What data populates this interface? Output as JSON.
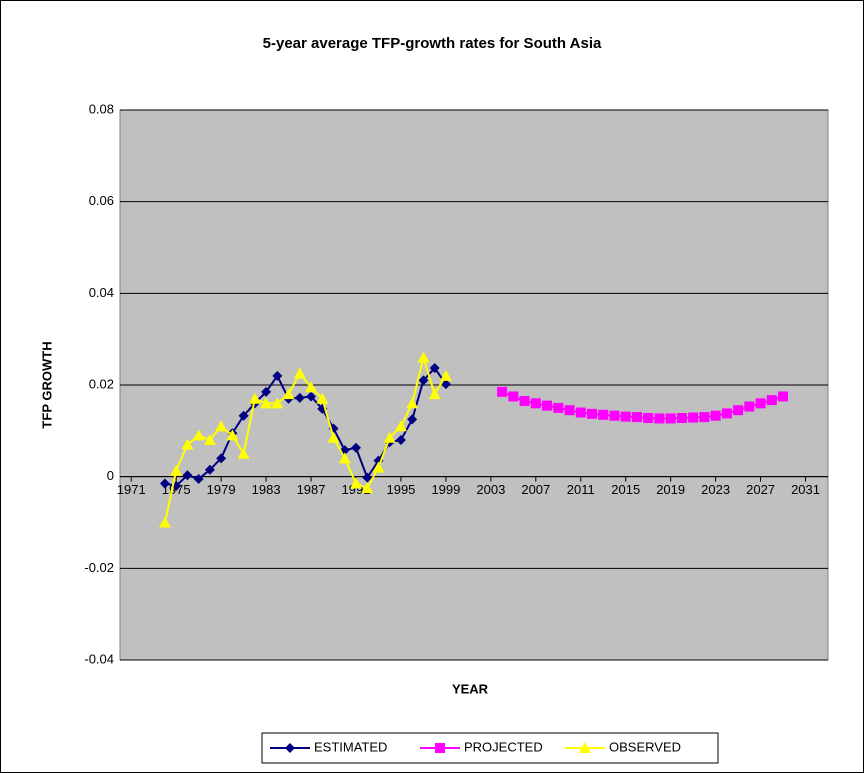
{
  "chart_data": {
    "type": "line",
    "title": "5-year average TFP-growth rates for South Asia",
    "xlabel": "YEAR",
    "ylabel": "TFP GROWTH",
    "x": [
      1974,
      1975,
      1976,
      1977,
      1978,
      1979,
      1980,
      1981,
      1982,
      1983,
      1984,
      1985,
      1986,
      1987,
      1988,
      1989,
      1990,
      1991,
      1992,
      1993,
      1994,
      1995,
      1996,
      1997,
      1998,
      1999,
      2000,
      2001,
      2002,
      2003,
      2004,
      2005,
      2006,
      2007,
      2008,
      2009,
      2010,
      2011,
      2012,
      2013,
      2014,
      2015,
      2016,
      2017,
      2018,
      2019,
      2020,
      2021,
      2022,
      2023,
      2024,
      2025,
      2026,
      2027,
      2028,
      2029
    ],
    "series": [
      {
        "name": "ESTIMATED",
        "color": "#000080",
        "marker": "diamond",
        "values": [
          -0.0015,
          -0.002,
          0.0003,
          -0.0005,
          0.0015,
          0.004,
          0.0095,
          0.0133,
          0.016,
          0.0185,
          0.022,
          0.017,
          0.0172,
          0.0175,
          0.0148,
          0.0105,
          0.0058,
          0.0063,
          -0.0002,
          0.0035,
          0.0075,
          0.008,
          0.0125,
          0.021,
          0.0237,
          0.0202,
          null,
          null,
          null,
          null,
          null,
          null,
          null,
          null,
          null,
          null,
          null,
          null,
          null,
          null,
          null,
          null,
          null,
          null,
          null,
          null,
          null,
          null,
          null,
          null,
          null,
          null,
          null,
          null,
          null,
          null
        ]
      },
      {
        "name": "PROJECTED",
        "color": "#ff00ff",
        "marker": "square",
        "values": [
          null,
          null,
          null,
          null,
          null,
          null,
          null,
          null,
          null,
          null,
          null,
          null,
          null,
          null,
          null,
          null,
          null,
          null,
          null,
          null,
          null,
          null,
          null,
          null,
          null,
          null,
          null,
          null,
          null,
          null,
          0.0185,
          0.0175,
          0.0165,
          0.016,
          0.0155,
          0.015,
          0.0145,
          0.014,
          0.0137,
          0.0135,
          0.0133,
          0.0131,
          0.013,
          0.0128,
          0.0127,
          0.0127,
          0.0128,
          0.0129,
          0.013,
          0.0133,
          0.0138,
          0.0145,
          0.0153,
          0.016,
          0.0167,
          0.0175
        ]
      },
      {
        "name": "OBSERVED",
        "color": "#ffff00",
        "marker": "triangle",
        "values": [
          -0.01,
          0.0013,
          0.007,
          0.009,
          0.008,
          0.011,
          0.009,
          0.005,
          0.017,
          0.016,
          0.016,
          0.018,
          0.0225,
          0.0195,
          0.017,
          0.0085,
          0.004,
          -0.0015,
          -0.0025,
          0.002,
          0.0085,
          0.011,
          0.016,
          0.026,
          0.018,
          0.022,
          null,
          null,
          null,
          null,
          null,
          null,
          null,
          null,
          null,
          null,
          null,
          null,
          null,
          null,
          null,
          null,
          null,
          null,
          null,
          null,
          null,
          null,
          null,
          null,
          null,
          null,
          null,
          null,
          null,
          null
        ]
      }
    ],
    "xlim": [
      1970,
      2033
    ],
    "xticks": [
      1971,
      1975,
      1979,
      1983,
      1987,
      1991,
      1995,
      1999,
      2003,
      2007,
      2011,
      2015,
      2019,
      2023,
      2027,
      2031
    ],
    "ylim": [
      -0.04,
      0.08
    ],
    "yticks": [
      -0.04,
      -0.02,
      0,
      0.02,
      0.04,
      0.06,
      0.08
    ],
    "grid": true,
    "legend": "bottom",
    "plot_background": "#c0c0c0"
  }
}
